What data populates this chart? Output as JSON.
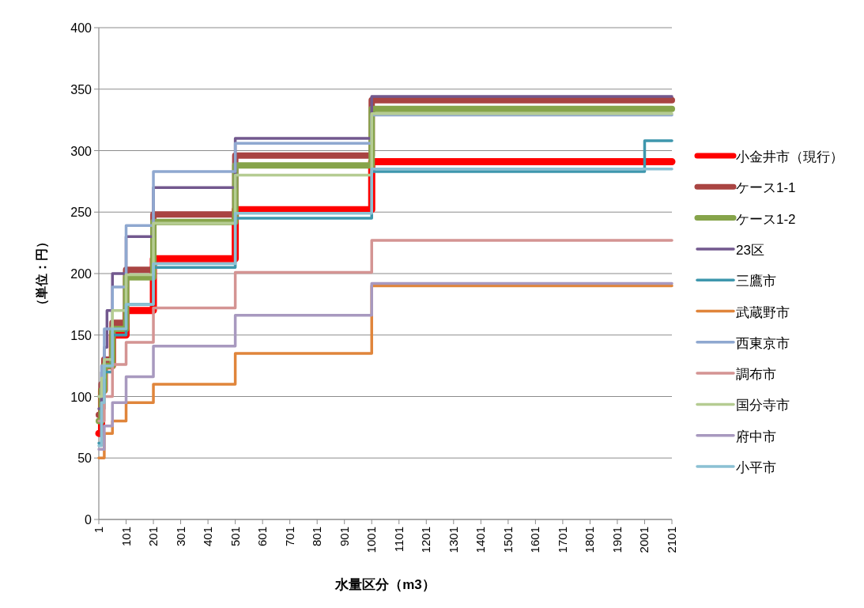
{
  "chart_data": {
    "type": "step",
    "xlabel": "水量区分（m3）",
    "ylabel": "（単位：円）",
    "xlim": [
      1,
      2101
    ],
    "xticks": [
      1,
      101,
      201,
      301,
      401,
      501,
      601,
      701,
      801,
      901,
      1001,
      1101,
      1201,
      1301,
      1401,
      1501,
      1601,
      1701,
      1801,
      1901,
      2001,
      2101
    ],
    "ylim": [
      0,
      400
    ],
    "yticks": [
      0,
      50,
      100,
      150,
      200,
      250,
      300,
      350,
      400
    ],
    "grid": "y",
    "legend": "right",
    "series": [
      {
        "name": "小金井市（現行）",
        "color": "#ff0000",
        "x": [
          1,
          11,
          21,
          51,
          101,
          201,
          501,
          1001,
          2101
        ],
        "values": [
          70,
          105,
          125,
          150,
          170,
          212,
          252,
          291,
          291
        ]
      },
      {
        "name": "ケース1-1",
        "color": "#a94442",
        "x": [
          1,
          11,
          21,
          51,
          101,
          201,
          501,
          1001,
          2101
        ],
        "values": [
          85,
          110,
          130,
          160,
          203,
          248,
          296,
          341,
          341
        ]
      },
      {
        "name": "ケース1-2",
        "color": "#86a44a",
        "x": [
          1,
          11,
          21,
          51,
          101,
          201,
          501,
          1001,
          2101
        ],
        "values": [
          80,
          105,
          125,
          155,
          197,
          242,
          288,
          334,
          334
        ]
      },
      {
        "name": "23区",
        "color": "#72588e",
        "x": [
          1,
          11,
          21,
          31,
          51,
          101,
          201,
          501,
          1001,
          2101
        ],
        "values": [
          90,
          120,
          140,
          170,
          200,
          230,
          270,
          310,
          344,
          344
        ]
      },
      {
        "name": "三鷹市",
        "color": "#3e97ad",
        "x": [
          1,
          11,
          21,
          51,
          101,
          201,
          501,
          1001,
          2001,
          2101
        ],
        "values": [
          62,
          90,
          120,
          150,
          175,
          205,
          245,
          283,
          308,
          308
        ]
      },
      {
        "name": "武蔵野市",
        "color": "#e0853b",
        "x": [
          1,
          21,
          51,
          101,
          201,
          501,
          1001,
          2101
        ],
        "values": [
          50,
          70,
          80,
          95,
          110,
          135,
          190,
          190
        ]
      },
      {
        "name": "西東京市",
        "color": "#8fa8d0",
        "x": [
          1,
          11,
          21,
          51,
          101,
          201,
          501,
          1001,
          2101
        ],
        "values": [
          100,
          125,
          155,
          189,
          239,
          283,
          306,
          329,
          329
        ]
      },
      {
        "name": "調布市",
        "color": "#d49493",
        "x": [
          1,
          21,
          51,
          101,
          201,
          501,
          1001,
          2101
        ],
        "values": [
          80,
          100,
          126,
          144,
          172,
          201,
          227,
          227
        ]
      },
      {
        "name": "国分寺市",
        "color": "#b5cc92",
        "x": [
          1,
          11,
          21,
          51,
          101,
          201,
          501,
          1001,
          2101
        ],
        "values": [
          100,
          115,
          130,
          170,
          199,
          241,
          280,
          330,
          330
        ]
      },
      {
        "name": "府中市",
        "color": "#a899bf",
        "x": [
          1,
          21,
          51,
          101,
          201,
          501,
          1001,
          2101
        ],
        "values": [
          57,
          76,
          95,
          116,
          141,
          166,
          192,
          192
        ]
      },
      {
        "name": "小平市",
        "color": "#8bc0d3",
        "x": [
          1,
          11,
          21,
          51,
          101,
          201,
          501,
          1001,
          2101
        ],
        "values": [
          60,
          95,
          125,
          155,
          175,
          208,
          249,
          285,
          285
        ]
      }
    ]
  }
}
